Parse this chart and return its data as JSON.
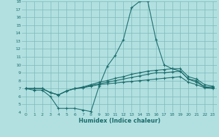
{
  "background_color": "#b2e0e0",
  "grid_color": "#7ab8b8",
  "line_color": "#1a6b6b",
  "xlabel": "Humidex (Indice chaleur)",
  "xlim": [
    -0.5,
    23.5
  ],
  "ylim": [
    4,
    18
  ],
  "yticks": [
    4,
    5,
    6,
    7,
    8,
    9,
    10,
    11,
    12,
    13,
    14,
    15,
    16,
    17,
    18
  ],
  "xticks": [
    0,
    1,
    2,
    3,
    4,
    5,
    6,
    7,
    8,
    9,
    10,
    11,
    12,
    13,
    14,
    15,
    16,
    17,
    18,
    19,
    20,
    21,
    22,
    23
  ],
  "series": [
    [
      7.0,
      6.8,
      6.8,
      6.0,
      4.5,
      4.5,
      4.5,
      4.3,
      4.1,
      7.3,
      9.8,
      11.2,
      13.2,
      17.2,
      18.0,
      18.0,
      13.2,
      10.0,
      9.5,
      9.2,
      8.2,
      7.8,
      7.2,
      7.2
    ],
    [
      7.0,
      7.0,
      7.0,
      6.5,
      6.2,
      6.7,
      7.0,
      7.2,
      7.5,
      7.8,
      8.0,
      8.3,
      8.5,
      8.8,
      9.0,
      9.2,
      9.3,
      9.4,
      9.5,
      9.5,
      8.5,
      8.2,
      7.5,
      7.3
    ],
    [
      7.0,
      7.0,
      7.0,
      6.5,
      6.2,
      6.7,
      7.0,
      7.1,
      7.4,
      7.6,
      7.8,
      8.0,
      8.2,
      8.4,
      8.6,
      8.8,
      9.0,
      9.0,
      9.1,
      9.2,
      8.2,
      8.0,
      7.2,
      7.1
    ],
    [
      7.0,
      7.0,
      7.0,
      6.5,
      6.2,
      6.7,
      7.0,
      7.1,
      7.3,
      7.5,
      7.6,
      7.7,
      7.8,
      7.9,
      8.0,
      8.1,
      8.2,
      8.3,
      8.4,
      8.5,
      7.8,
      7.5,
      7.1,
      7.0
    ]
  ]
}
